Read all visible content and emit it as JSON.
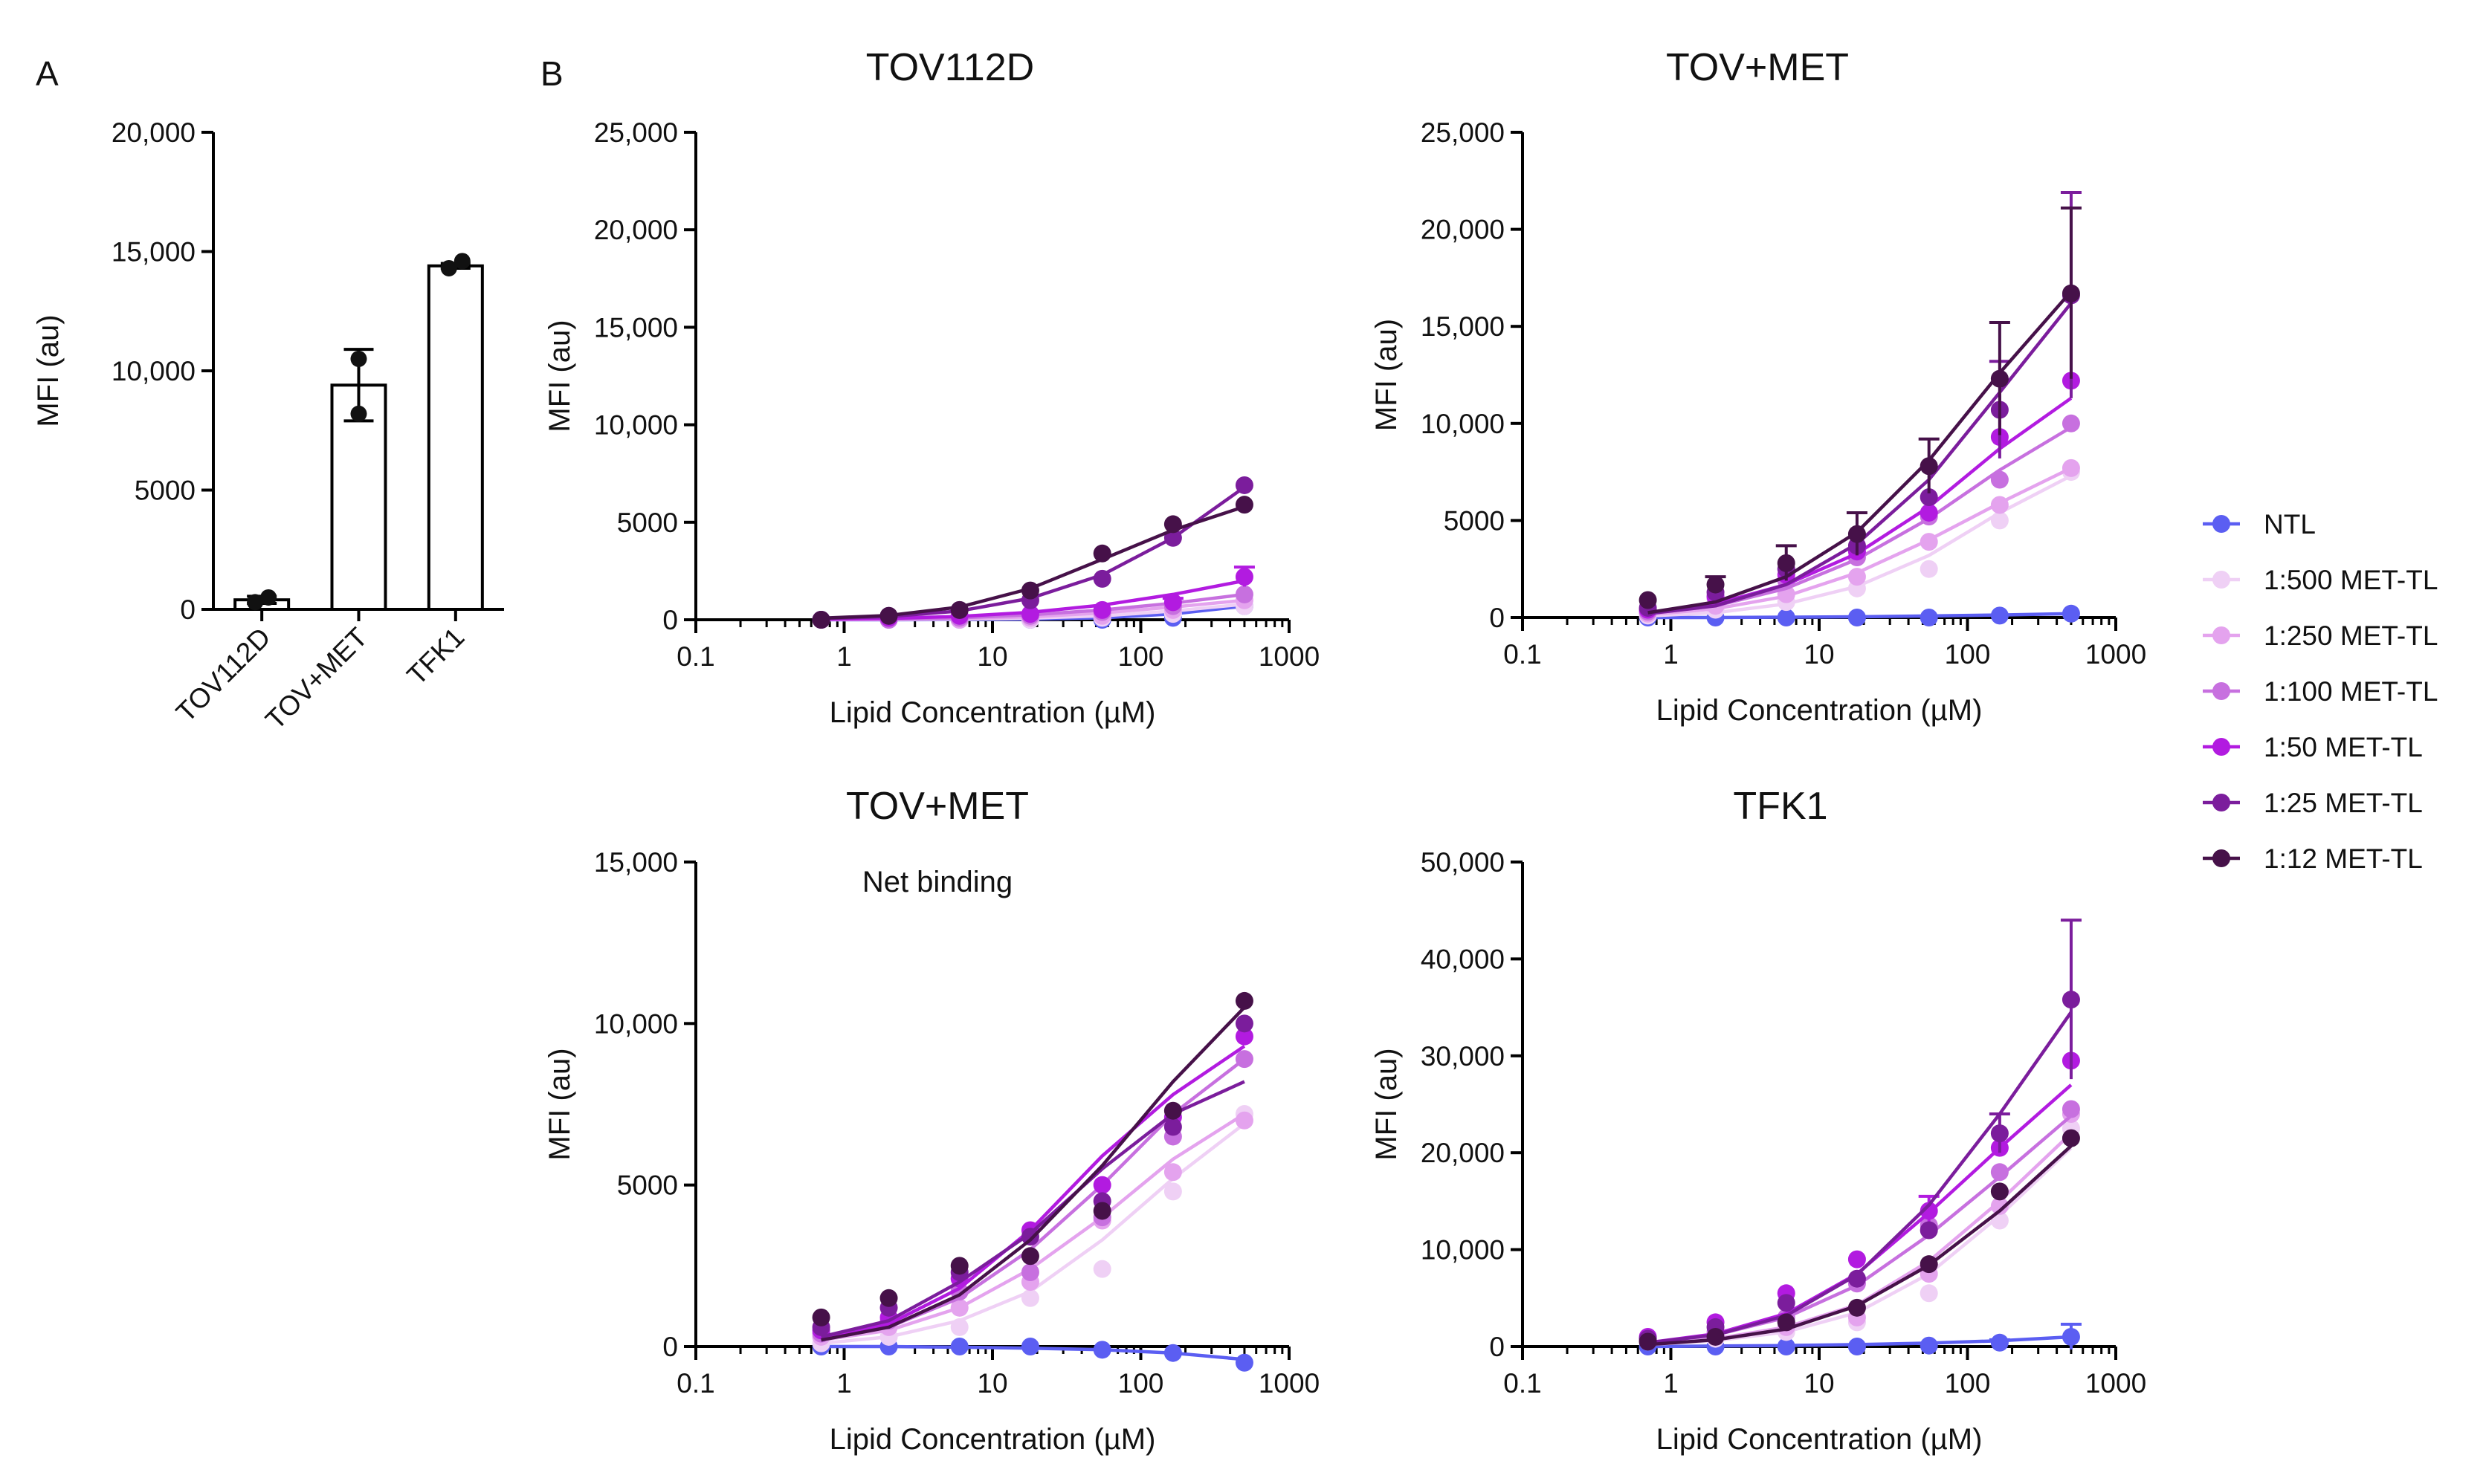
{
  "panels": {
    "a_label": "A",
    "b_label": "B"
  },
  "colors": {
    "NTL": "#5b5ef2",
    "1:500 MET-TL": "#efd0f5",
    "1:250 MET-TL": "#e4a3ee",
    "1:100 MET-TL": "#c770df",
    "1:50 MET-TL": "#b21be0",
    "1:25 MET-TL": "#7b1d9c",
    "1:12 MET-TL": "#461149"
  },
  "legend": {
    "entries": [
      "NTL",
      "1:500 MET-TL",
      "1:250 MET-TL",
      "1:100 MET-TL",
      "1:50 MET-TL",
      "1:25 MET-TL",
      "1:12 MET-TL"
    ],
    "placement": "right"
  },
  "chart_data": [
    {
      "id": "A",
      "type": "bar",
      "title": "",
      "xlabel": "",
      "ylabel": "MFI (au)",
      "categories": [
        "TOV112D",
        "TOV+MET",
        "TFK1"
      ],
      "values": [
        400,
        9400,
        14400
      ],
      "error": [
        150,
        1500,
        100
      ],
      "points": [
        [
          300,
          500
        ],
        [
          8200,
          10500
        ],
        [
          14300,
          14600
        ]
      ],
      "ylim": [
        0,
        20000
      ],
      "yticks": [
        0,
        5000,
        10000,
        15000,
        20000
      ],
      "ytick_labels": [
        "0",
        "5000",
        "10,000",
        "15,000",
        "20,000"
      ]
    },
    {
      "id": "B1",
      "type": "scatter",
      "title": "TOV112D",
      "xlabel": "Lipid Concentration (µM)",
      "ylabel": "MFI (au)",
      "xscale": "log",
      "xlim": [
        0.1,
        1000
      ],
      "xticks": [
        0.1,
        1,
        10,
        100,
        1000
      ],
      "xtick_labels": [
        "0.1",
        "1",
        "10",
        "100",
        "1000"
      ],
      "ylim": [
        0,
        25000
      ],
      "yticks": [
        0,
        5000,
        10000,
        15000,
        20000,
        25000
      ],
      "ytick_labels": [
        "0",
        "5000",
        "10,000",
        "15,000",
        "20,000",
        "25,000"
      ],
      "x": [
        0.7,
        2,
        6,
        18,
        55,
        165,
        500
      ],
      "series": [
        {
          "name": "NTL",
          "values": [
            0,
            0,
            0,
            0,
            0,
            100,
            700
          ],
          "fit": [
            0,
            0,
            10,
            30,
            100,
            300,
            700
          ]
        },
        {
          "name": "1:500 MET-TL",
          "values": [
            0,
            0,
            0,
            0,
            100,
            300,
            700
          ],
          "fit": [
            0,
            10,
            30,
            80,
            200,
            450,
            800
          ]
        },
        {
          "name": "1:250 MET-TL",
          "values": [
            0,
            0,
            0,
            100,
            200,
            500,
            1000
          ],
          "fit": [
            10,
            20,
            60,
            150,
            350,
            650,
            1000
          ]
        },
        {
          "name": "1:100 MET-TL",
          "values": [
            0,
            0,
            100,
            200,
            400,
            700,
            1300
          ],
          "fit": [
            20,
            40,
            100,
            250,
            500,
            850,
            1300
          ]
        },
        {
          "name": "1:50 MET-TL",
          "values": [
            0,
            100,
            200,
            300,
            500,
            900,
            2200
          ],
          "error": [
            0,
            0,
            0,
            0,
            0,
            200,
            500
          ],
          "fit": [
            30,
            70,
            170,
            380,
            750,
            1300,
            2000
          ]
        },
        {
          "name": "1:25 MET-TL",
          "values": [
            0,
            200,
            500,
            1000,
            2100,
            4200,
            6900
          ],
          "fit": [
            60,
            160,
            450,
            1100,
            2300,
            4200,
            6800
          ]
        },
        {
          "name": "1:12 MET-TL",
          "values": [
            0,
            200,
            500,
            1500,
            3400,
            4900,
            5900
          ],
          "fit": [
            80,
            220,
            650,
            1600,
            3100,
            4600,
            5800
          ]
        }
      ]
    },
    {
      "id": "B2",
      "type": "scatter",
      "title": "TOV+MET",
      "xlabel": "Lipid Concentration (µM)",
      "ylabel": "MFI (au)",
      "xscale": "log",
      "xlim": [
        0.1,
        1000
      ],
      "xticks": [
        0.1,
        1,
        10,
        100,
        1000
      ],
      "xtick_labels": [
        "0.1",
        "1",
        "10",
        "100",
        "1000"
      ],
      "ylim": [
        0,
        25000
      ],
      "yticks": [
        0,
        5000,
        10000,
        15000,
        20000,
        25000
      ],
      "ytick_labels": [
        "0",
        "5000",
        "10,000",
        "15,000",
        "20,000",
        "25,000"
      ],
      "x": [
        0.7,
        2,
        6,
        18,
        55,
        165,
        500
      ],
      "series": [
        {
          "name": "NTL",
          "values": [
            0,
            0,
            0,
            0,
            0,
            100,
            200
          ],
          "fit": [
            0,
            0,
            20,
            40,
            80,
            130,
            200
          ]
        },
        {
          "name": "1:500 MET-TL",
          "values": [
            100,
            400,
            800,
            1500,
            2500,
            5000,
            7500
          ],
          "fit": [
            80,
            250,
            700,
            1600,
            3200,
            5400,
            7300
          ]
        },
        {
          "name": "1:250 MET-TL",
          "values": [
            200,
            600,
            1200,
            2100,
            3900,
            5800,
            7700
          ],
          "fit": [
            150,
            450,
            1100,
            2300,
            4000,
            5900,
            7700
          ]
        },
        {
          "name": "1:100 MET-TL",
          "values": [
            300,
            1000,
            1900,
            3100,
            5200,
            7100,
            10000
          ],
          "fit": [
            200,
            600,
            1500,
            3000,
            5100,
            7600,
            9800
          ]
        },
        {
          "name": "1:50 MET-TL",
          "values": [
            400,
            1100,
            2200,
            3400,
            5400,
            9300,
            12200
          ],
          "fit": [
            250,
            700,
            1700,
            3300,
            5700,
            8700,
            11300
          ]
        },
        {
          "name": "1:25 MET-TL",
          "values": [
            500,
            1300,
            2500,
            3700,
            6200,
            10700,
            16600
          ],
          "error": [
            0,
            0,
            0,
            0,
            0,
            2500,
            5300
          ],
          "fit": [
            200,
            600,
            1700,
            3800,
            7100,
            11600,
            16200
          ]
        },
        {
          "name": "1:12 MET-TL",
          "values": [
            900,
            1700,
            2800,
            4300,
            7800,
            12300,
            16700
          ],
          "error": [
            0,
            400,
            900,
            1100,
            1400,
            2900,
            4400
          ],
          "fit": [
            250,
            800,
            2100,
            4400,
            8100,
            12600,
            16800
          ]
        }
      ]
    },
    {
      "id": "B3",
      "type": "scatter",
      "title": "TOV+MET",
      "annotation": "Net binding",
      "xlabel": "Lipid Concentration (µM)",
      "ylabel": "MFI (au)",
      "xscale": "log",
      "xlim": [
        0.1,
        1000
      ],
      "xticks": [
        0.1,
        1,
        10,
        100,
        1000
      ],
      "xtick_labels": [
        "0.1",
        "1",
        "10",
        "100",
        "1000"
      ],
      "ylim": [
        0,
        15000
      ],
      "yticks": [
        0,
        5000,
        10000,
        15000
      ],
      "ytick_labels": [
        "0",
        "5000",
        "10,000",
        "15,000"
      ],
      "x": [
        0.7,
        2,
        6,
        18,
        55,
        165,
        500
      ],
      "series": [
        {
          "name": "NTL",
          "values": [
            0,
            0,
            0,
            0,
            -100,
            -200,
            -500
          ],
          "fit": [
            0,
            0,
            -20,
            -50,
            -100,
            -200,
            -400
          ]
        },
        {
          "name": "1:500 MET-TL",
          "values": [
            100,
            300,
            600,
            1500,
            2400,
            4800,
            7200
          ],
          "fit": [
            100,
            300,
            800,
            1700,
            3300,
            5200,
            6900
          ]
        },
        {
          "name": "1:250 MET-TL",
          "values": [
            300,
            600,
            1200,
            2000,
            3900,
            5400,
            7000
          ],
          "fit": [
            200,
            500,
            1200,
            2400,
            4000,
            5800,
            7200
          ]
        },
        {
          "name": "1:100 MET-TL",
          "values": [
            400,
            800,
            1700,
            2300,
            4000,
            6500,
            8900
          ],
          "fit": [
            250,
            600,
            1500,
            3000,
            5000,
            7200,
            8900
          ]
        },
        {
          "name": "1:50 MET-TL",
          "values": [
            500,
            900,
            2100,
            3600,
            5000,
            7100,
            9600
          ],
          "fit": [
            200,
            700,
            1800,
            3600,
            5900,
            7800,
            9300
          ]
        },
        {
          "name": "1:25 MET-TL",
          "values": [
            600,
            1200,
            2300,
            3400,
            4500,
            6800,
            10000
          ],
          "fit": [
            300,
            800,
            2000,
            3500,
            5500,
            7200,
            8200
          ]
        },
        {
          "name": "1:12 MET-TL",
          "values": [
            900,
            1500,
            2500,
            2800,
            4200,
            7300,
            10700
          ],
          "fit": [
            200,
            600,
            1600,
            3300,
            5600,
            8200,
            10500
          ]
        }
      ]
    },
    {
      "id": "B4",
      "type": "scatter",
      "title": "TFK1",
      "xlabel": "Lipid Concentration (µM)",
      "ylabel": "MFI (au)",
      "xscale": "log",
      "xlim": [
        0.1,
        1000
      ],
      "xticks": [
        0.1,
        1,
        10,
        100,
        1000
      ],
      "xtick_labels": [
        "0.1",
        "1",
        "10",
        "100",
        "1000"
      ],
      "ylim": [
        0,
        50000
      ],
      "yticks": [
        0,
        10000,
        20000,
        30000,
        40000,
        50000
      ],
      "ytick_labels": [
        "0",
        "10,000",
        "20,000",
        "30,000",
        "40,000",
        "50,000"
      ],
      "x": [
        0.7,
        2,
        6,
        18,
        55,
        165,
        500
      ],
      "series": [
        {
          "name": "NTL",
          "values": [
            0,
            0,
            0,
            0,
            100,
            400,
            1000
          ],
          "error": [
            0,
            0,
            0,
            0,
            0,
            300,
            1300
          ],
          "fit": [
            0,
            50,
            100,
            200,
            350,
            600,
            1000
          ]
        },
        {
          "name": "1:500 MET-TL",
          "values": [
            500,
            800,
            1500,
            2500,
            5500,
            13000,
            22500
          ],
          "fit": [
            200,
            600,
            1500,
            3500,
            7500,
            13500,
            20500
          ]
        },
        {
          "name": "1:250 MET-TL",
          "values": [
            600,
            1000,
            2000,
            3000,
            7500,
            14500,
            24000
          ],
          "fit": [
            300,
            800,
            2000,
            4300,
            8800,
            15000,
            22000
          ]
        },
        {
          "name": "1:100 MET-TL",
          "values": [
            700,
            1500,
            3000,
            6500,
            12500,
            18000,
            24500
          ],
          "fit": [
            400,
            1200,
            3000,
            6300,
            11500,
            17500,
            23800
          ]
        },
        {
          "name": "1:50 MET-TL",
          "values": [
            1000,
            2500,
            5500,
            9000,
            14000,
            20500,
            29500
          ],
          "error": [
            0,
            0,
            0,
            0,
            1500,
            0,
            0
          ],
          "fit": [
            400,
            1300,
            3400,
            7500,
            13800,
            20500,
            27000
          ]
        },
        {
          "name": "1:25 MET-TL",
          "values": [
            800,
            2000,
            4500,
            7000,
            12000,
            22000,
            35800
          ],
          "error": [
            0,
            0,
            0,
            0,
            0,
            2000,
            8200
          ],
          "fit": [
            400,
            1200,
            3200,
            7400,
            14600,
            24000,
            34500
          ]
        },
        {
          "name": "1:12 MET-TL",
          "values": [
            500,
            1000,
            2500,
            4000,
            8500,
            16000,
            21500
          ],
          "fit": [
            200,
            700,
            1800,
            4200,
            8400,
            14000,
            20700
          ]
        }
      ]
    }
  ]
}
